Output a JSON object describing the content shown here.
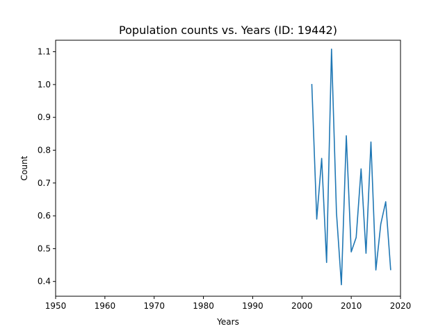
{
  "chart_data": {
    "type": "line",
    "title": "Population counts vs. Years (ID: 19442)",
    "xlabel": "Years",
    "ylabel": "Count",
    "xlim": [
      1950,
      2020
    ],
    "ylim": [
      0.355,
      1.135
    ],
    "xticks": [
      1950,
      1960,
      1970,
      1980,
      1990,
      2000,
      2010,
      2020
    ],
    "yticks": [
      0.4,
      0.5,
      0.6,
      0.7,
      0.8,
      0.9,
      1.0,
      1.1
    ],
    "ytick_labels": [
      "0.4",
      "0.5",
      "0.6",
      "0.7",
      "0.8",
      "0.9",
      "1.0",
      "1.1"
    ],
    "grid": false,
    "legend": false,
    "series": [
      {
        "color": "#1f77b4",
        "x": [
          2002,
          2003,
          2004,
          2005,
          2006,
          2007,
          2008,
          2009,
          2010,
          2011,
          2012,
          2013,
          2014,
          2015,
          2016,
          2017,
          2018
        ],
        "y": [
          1.0,
          0.59,
          0.775,
          0.458,
          1.108,
          0.61,
          0.39,
          0.844,
          0.49,
          0.534,
          0.743,
          0.486,
          0.825,
          0.435,
          0.575,
          0.643,
          0.436
        ]
      }
    ]
  }
}
